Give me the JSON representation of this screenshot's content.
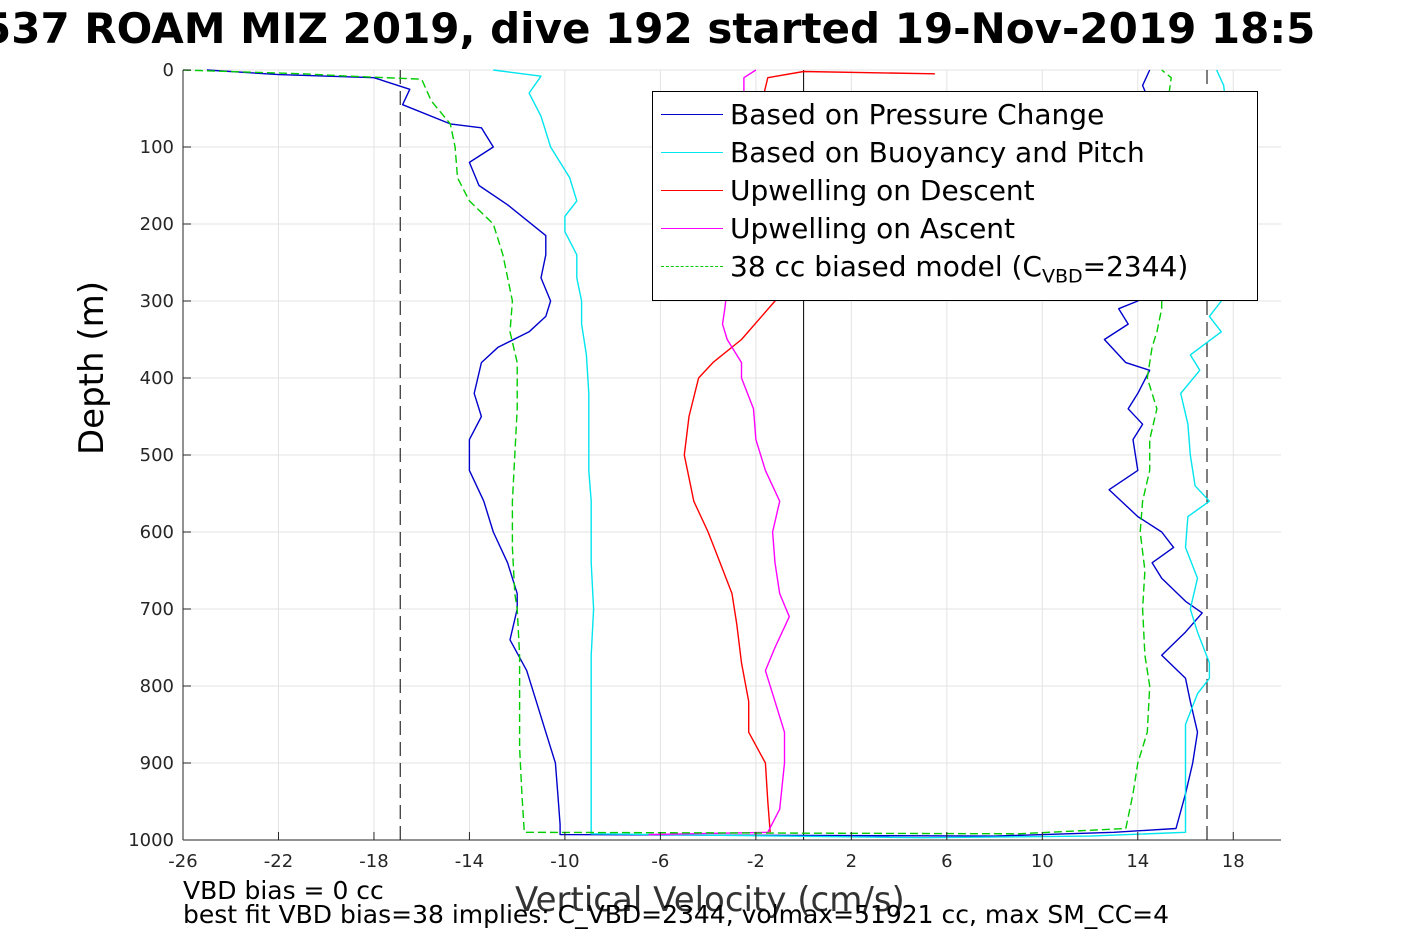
{
  "title": "537 ROAM MIZ 2019, dive 192 started 19-Nov-2019 18:5",
  "footnotes": [
    "VBD bias = 0 cc",
    "best fit VBD bias=38 implies: C_VBD=2344, volmax=51921 cc, max SM_CC=4"
  ],
  "chart_data": {
    "type": "line",
    "title": "537 ROAM MIZ 2019, dive 192 started 19-Nov-2019 18:5",
    "xlabel": "Vertical Velocity (cm/s)",
    "ylabel": "Depth (m)",
    "xlim": [
      -26,
      20
    ],
    "ylim": [
      0,
      1000
    ],
    "y_reversed": true,
    "grid": true,
    "legend_position": "top-right",
    "xticks": [
      "-26",
      "-22",
      "-18",
      "-14",
      "-10",
      "-6",
      "-2",
      "2",
      "6",
      "10",
      "14",
      "18"
    ],
    "yticks": [
      "0",
      "100",
      "200",
      "300",
      "400",
      "500",
      "600",
      "700",
      "800",
      "900",
      "1000"
    ],
    "reference_lines": {
      "dashed_vertical_x": [
        -16.9,
        16.9
      ],
      "solid_vertical_x": [
        0
      ]
    },
    "legend": {
      "entries": [
        {
          "text": "Based on Pressure Change"
        },
        {
          "text": "Based on Buoyancy and Pitch"
        },
        {
          "text": "Upwelling on Descent"
        },
        {
          "text": "Upwelling on Ascent"
        },
        {
          "text_prefix": "38 cc biased model (C",
          "text_sub": "VBD",
          "text_suffix": "=2344)"
        }
      ]
    },
    "series": [
      {
        "name": "Based on Pressure Change",
        "color": "#0000cc",
        "style": "solid",
        "points": [
          [
            -25,
            0
          ],
          [
            -22,
            6
          ],
          [
            -18,
            10
          ],
          [
            -16.5,
            25
          ],
          [
            -16.8,
            45
          ],
          [
            -14.8,
            70
          ],
          [
            -13.5,
            75
          ],
          [
            -13,
            100
          ],
          [
            -14,
            120
          ],
          [
            -13.6,
            150
          ],
          [
            -12.4,
            175
          ],
          [
            -11.6,
            195
          ],
          [
            -10.8,
            215
          ],
          [
            -10.8,
            240
          ],
          [
            -11,
            270
          ],
          [
            -10.6,
            300
          ],
          [
            -10.8,
            320
          ],
          [
            -11.5,
            340
          ],
          [
            -12.8,
            360
          ],
          [
            -13.5,
            380
          ],
          [
            -13.8,
            420
          ],
          [
            -13.5,
            450
          ],
          [
            -14,
            480
          ],
          [
            -14,
            520
          ],
          [
            -13.4,
            560
          ],
          [
            -13,
            600
          ],
          [
            -12.4,
            640
          ],
          [
            -12,
            680
          ],
          [
            -12,
            700
          ],
          [
            -12.3,
            740
          ],
          [
            -11.6,
            780
          ],
          [
            -11.2,
            820
          ],
          [
            -10.8,
            860
          ],
          [
            -10.4,
            900
          ],
          [
            -10.3,
            940
          ],
          [
            -10.2,
            980
          ],
          [
            -10.2,
            993
          ],
          [
            8,
            995
          ],
          [
            13,
            990
          ],
          [
            15.6,
            985
          ],
          [
            16,
            940
          ],
          [
            16.3,
            900
          ],
          [
            16.5,
            860
          ],
          [
            16.2,
            820
          ],
          [
            16,
            790
          ],
          [
            15,
            760
          ],
          [
            16,
            730
          ],
          [
            16.7,
            705
          ],
          [
            16,
            690
          ],
          [
            15,
            660
          ],
          [
            14.6,
            640
          ],
          [
            15.5,
            620
          ],
          [
            15,
            600
          ],
          [
            14,
            580
          ],
          [
            12.8,
            545
          ],
          [
            14,
            520
          ],
          [
            13.8,
            480
          ],
          [
            14.2,
            460
          ],
          [
            13.6,
            440
          ],
          [
            14,
            420
          ],
          [
            14.5,
            390
          ],
          [
            13.5,
            380
          ],
          [
            12.6,
            350
          ],
          [
            13.6,
            330
          ],
          [
            13.2,
            310
          ],
          [
            14,
            300
          ],
          [
            14.8,
            280
          ],
          [
            14.5,
            250
          ],
          [
            14.5,
            200
          ],
          [
            14.6,
            150
          ],
          [
            14.5,
            100
          ],
          [
            14.6,
            50
          ],
          [
            14.2,
            20
          ],
          [
            14.5,
            0
          ]
        ]
      },
      {
        "name": "Based on Buoyancy and Pitch",
        "color": "#00e5ee",
        "style": "solid",
        "points": [
          [
            -13,
            0
          ],
          [
            -11,
            8
          ],
          [
            -11.5,
            30
          ],
          [
            -11,
            60
          ],
          [
            -10.6,
            100
          ],
          [
            -9.8,
            140
          ],
          [
            -9.5,
            170
          ],
          [
            -10,
            190
          ],
          [
            -10,
            210
          ],
          [
            -9.5,
            240
          ],
          [
            -9.5,
            270
          ],
          [
            -9.3,
            300
          ],
          [
            -9.3,
            330
          ],
          [
            -9.1,
            370
          ],
          [
            -9,
            420
          ],
          [
            -9,
            470
          ],
          [
            -9,
            520
          ],
          [
            -8.9,
            560
          ],
          [
            -8.9,
            600
          ],
          [
            -8.9,
            640
          ],
          [
            -8.8,
            700
          ],
          [
            -8.9,
            760
          ],
          [
            -8.9,
            820
          ],
          [
            -8.9,
            880
          ],
          [
            -8.9,
            940
          ],
          [
            -8.9,
            992
          ],
          [
            5,
            997
          ],
          [
            12,
            995
          ],
          [
            16,
            990
          ],
          [
            16,
            900
          ],
          [
            16,
            850
          ],
          [
            16.5,
            810
          ],
          [
            17,
            790
          ],
          [
            17,
            770
          ],
          [
            16.5,
            730
          ],
          [
            16.2,
            700
          ],
          [
            16.5,
            660
          ],
          [
            16,
            620
          ],
          [
            16.1,
            580
          ],
          [
            17,
            560
          ],
          [
            16.4,
            540
          ],
          [
            16.2,
            500
          ],
          [
            16.1,
            460
          ],
          [
            15.8,
            420
          ],
          [
            16.6,
            390
          ],
          [
            16.2,
            370
          ],
          [
            17.5,
            340
          ],
          [
            17,
            320
          ],
          [
            17.5,
            300
          ],
          [
            17.5,
            270
          ],
          [
            18,
            250
          ],
          [
            18.5,
            200
          ],
          [
            19,
            150
          ],
          [
            17.6,
            130
          ],
          [
            17.6,
            100
          ],
          [
            17.7,
            50
          ],
          [
            17.6,
            20
          ],
          [
            17.3,
            0
          ]
        ]
      },
      {
        "name": "Upwelling on Descent",
        "color": "#ff0000",
        "style": "solid",
        "points": [
          [
            5.5,
            5
          ],
          [
            0,
            2
          ],
          [
            -1.5,
            10
          ],
          [
            -2.2,
            100
          ],
          [
            -1.7,
            200
          ],
          [
            -1.2,
            300
          ],
          [
            -2.6,
            350
          ],
          [
            -3.8,
            380
          ],
          [
            -4.4,
            400
          ],
          [
            -4.8,
            450
          ],
          [
            -5,
            500
          ],
          [
            -4.6,
            560
          ],
          [
            -4,
            600
          ],
          [
            -3.5,
            640
          ],
          [
            -3,
            680
          ],
          [
            -2.8,
            720
          ],
          [
            -2.6,
            770
          ],
          [
            -2.3,
            820
          ],
          [
            -2.3,
            860
          ],
          [
            -1.6,
            900
          ],
          [
            -1.5,
            950
          ],
          [
            -1.4,
            990
          ]
        ]
      },
      {
        "name": "Upwelling on Ascent",
        "color": "#ff00ff",
        "style": "solid",
        "points": [
          [
            -6.5,
            993
          ],
          [
            -1.5,
            990
          ],
          [
            -1,
            960
          ],
          [
            -0.8,
            900
          ],
          [
            -0.8,
            860
          ],
          [
            -1.2,
            820
          ],
          [
            -1.6,
            780
          ],
          [
            -1.2,
            750
          ],
          [
            -0.6,
            710
          ],
          [
            -1,
            680
          ],
          [
            -1.2,
            640
          ],
          [
            -1.3,
            600
          ],
          [
            -1,
            560
          ],
          [
            -1.6,
            520
          ],
          [
            -2,
            480
          ],
          [
            -2.1,
            440
          ],
          [
            -2.6,
            400
          ],
          [
            -2.6,
            380
          ],
          [
            -3.2,
            350
          ],
          [
            -3.4,
            330
          ],
          [
            -3.3,
            310
          ],
          [
            -2.5,
            100
          ],
          [
            -2.5,
            10
          ],
          [
            -2,
            0
          ]
        ]
      },
      {
        "name": "38 cc biased model (C_VBD=2344)",
        "color": "#00cc00",
        "style": "dashed",
        "points": [
          [
            -26,
            0
          ],
          [
            -21,
            5
          ],
          [
            -19,
            8
          ],
          [
            -16,
            12
          ],
          [
            -15.6,
            40
          ],
          [
            -14.8,
            70
          ],
          [
            -14.6,
            100
          ],
          [
            -14.5,
            140
          ],
          [
            -14,
            170
          ],
          [
            -13,
            200
          ],
          [
            -12.6,
            240
          ],
          [
            -12.2,
            300
          ],
          [
            -12.3,
            340
          ],
          [
            -12,
            380
          ],
          [
            -12,
            440
          ],
          [
            -12.1,
            500
          ],
          [
            -12.2,
            560
          ],
          [
            -12.2,
            620
          ],
          [
            -12.1,
            680
          ],
          [
            -12,
            700
          ],
          [
            -11.9,
            760
          ],
          [
            -11.9,
            820
          ],
          [
            -11.9,
            880
          ],
          [
            -11.8,
            940
          ],
          [
            -11.7,
            990
          ],
          [
            9,
            992
          ],
          [
            13.5,
            985
          ],
          [
            13.8,
            940
          ],
          [
            14,
            900
          ],
          [
            14.4,
            860
          ],
          [
            14.5,
            800
          ],
          [
            14.3,
            760
          ],
          [
            14.2,
            700
          ],
          [
            14.3,
            650
          ],
          [
            14.1,
            600
          ],
          [
            14.2,
            560
          ],
          [
            14.5,
            520
          ],
          [
            14.5,
            480
          ],
          [
            14.8,
            440
          ],
          [
            14.4,
            400
          ],
          [
            14.6,
            360
          ],
          [
            14.8,
            340
          ],
          [
            15,
            310
          ],
          [
            15,
            250
          ],
          [
            15,
            200
          ],
          [
            15,
            100
          ],
          [
            15.4,
            10
          ],
          [
            15,
            0
          ]
        ]
      }
    ]
  }
}
